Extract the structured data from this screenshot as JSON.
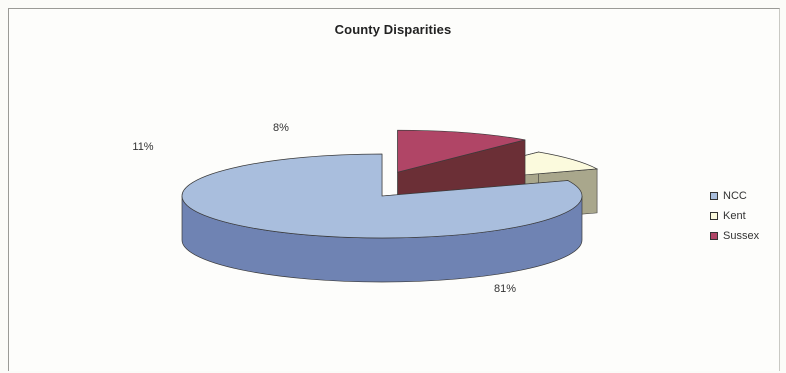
{
  "chart_data": {
    "type": "pie",
    "title": "County Disparities",
    "labels": [
      "NCC",
      "Kent",
      "Sussex"
    ],
    "values": [
      81,
      8,
      11
    ],
    "data_labels": [
      "81%",
      "8%",
      "11%"
    ],
    "colors": [
      "#a9bedd",
      "#fbfadd",
      "#b04566"
    ],
    "side_colors": [
      "#6f83b3",
      "#a9a78c",
      "#6b2f36"
    ],
    "legend_position": "right",
    "style": "3d-exploded"
  }
}
